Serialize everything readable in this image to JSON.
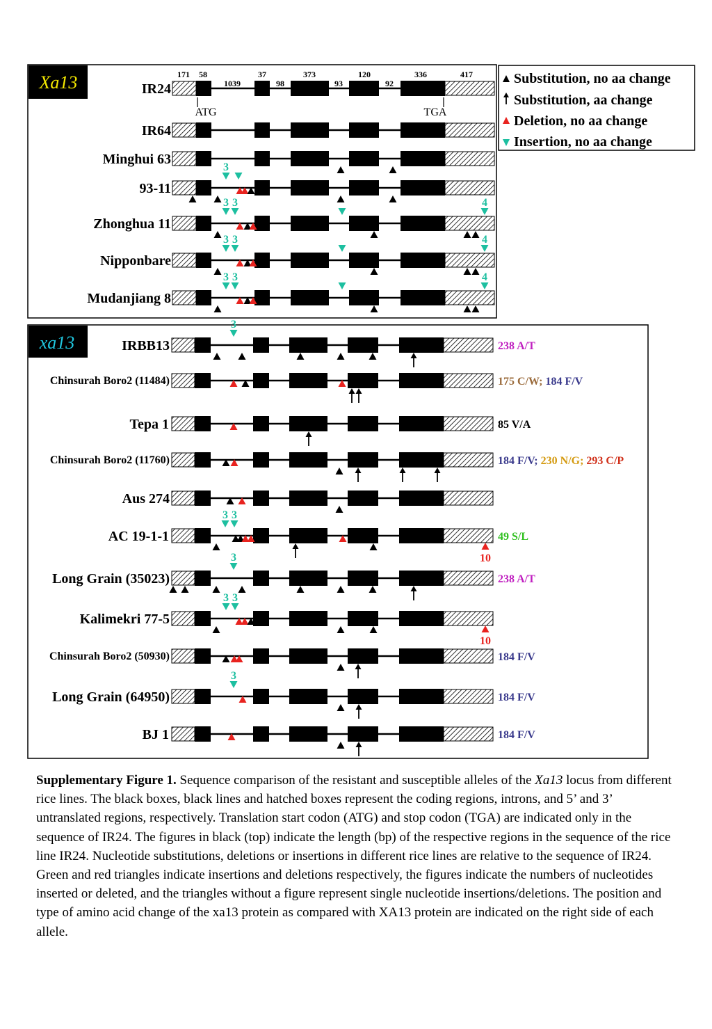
{
  "colors": {
    "exon": "#000000",
    "substitution": "#000000",
    "deletion": "#e8231f",
    "insertion": "#1dbfa0",
    "title_xa13_resistant_text": "#f5e900",
    "title_xa13_susceptible_text": "#20c8e0",
    "title_bg": "#000000"
  },
  "legend": {
    "items": [
      {
        "symbol": "triangle-up",
        "color": "#000000",
        "label": "Substitution, no aa change"
      },
      {
        "symbol": "arrow-up",
        "color": "#000000",
        "label": "Substitution, aa change"
      },
      {
        "symbol": "triangle-up",
        "color": "#e8231f",
        "label": "Deletion, no aa change"
      },
      {
        "symbol": "triangle-down",
        "color": "#1dbfa0",
        "label": "Insertion, no aa change"
      }
    ]
  },
  "gene_structure": {
    "lengths": [
      "171",
      "58",
      "1039",
      "37",
      "98",
      "373",
      "93",
      "120",
      "92",
      "336",
      "417"
    ],
    "start_codon": "ATG",
    "stop_codon": "TGA"
  },
  "panel_top": {
    "title": "Xa13",
    "lines": [
      {
        "name": "IR24"
      },
      {
        "name": "IR64"
      },
      {
        "name": "Minghui 63"
      },
      {
        "name": "93-11"
      },
      {
        "name": "Zhonghua 11"
      },
      {
        "name": "Nipponbare"
      },
      {
        "name": "Mudanjiang 8"
      }
    ]
  },
  "panel_bottom": {
    "title": "xa13",
    "lines": [
      {
        "name": "IRBB13",
        "changes": [
          {
            "text": "238 A/T",
            "color": "#c020c0"
          }
        ]
      },
      {
        "name": "Chinsurah Boro2 (11484)",
        "changes": [
          {
            "text": "175 C/W;",
            "color": "#9a6a3a"
          },
          {
            "text": "184 F/V",
            "color": "#3a3a8c"
          }
        ]
      },
      {
        "name": "Tepa 1",
        "changes": [
          {
            "text": "85 V/A",
            "color": "#000000"
          }
        ]
      },
      {
        "name": "Chinsurah Boro2 (11760)",
        "changes": [
          {
            "text": "184 F/V;",
            "color": "#3a3a8c"
          },
          {
            "text": "230 N/G;",
            "color": "#d49a10"
          },
          {
            "text": "293 C/P",
            "color": "#d0301a"
          }
        ]
      },
      {
        "name": "Aus 274",
        "changes": []
      },
      {
        "name": "AC 19-1-1",
        "changes": [
          {
            "text": "49 S/L",
            "color": "#30c020"
          }
        ]
      },
      {
        "name": "Long Grain (35023)",
        "changes": [
          {
            "text": "238 A/T",
            "color": "#c020c0"
          }
        ]
      },
      {
        "name": "Kalimekri 77-5",
        "changes": []
      },
      {
        "name": "Chinsurah Boro2 (50930)",
        "changes": [
          {
            "text": "184 F/V",
            "color": "#3a3a8c"
          }
        ]
      },
      {
        "name": "Long Grain (64950)",
        "changes": [
          {
            "text": "184 F/V",
            "color": "#3a3a8c"
          }
        ]
      },
      {
        "name": "BJ 1",
        "changes": [
          {
            "text": "184 F/V",
            "color": "#3a3a8c"
          }
        ]
      }
    ]
  },
  "caption": {
    "label": "Supplementary Figure 1.",
    "text_1": " Sequence comparison of the resistant and susceptible alleles of the ",
    "gene_italic": "Xa13",
    "text_2": " locus from different rice lines. The black boxes, black lines and hatched boxes represent the coding regions, introns, and 5’ and 3’ untranslated regions, respectively. Translation start codon (ATG) and stop codon (TGA) are indicated only in the sequence of IR24. The figures in black (top) indicate the length (bp) of the respective regions in the sequence of the rice line IR24. Nucleotide substitutions, deletions or insertions in different rice lines are relative to the sequence of IR24. Green and red triangles indicate insertions and deletions respectively, the figures indicate the numbers of nucleotides inserted or deleted, and the triangles without a figure represent single nucleotide insertions/deletions. The position and type of amino acid change of the xa13 protein as compared with XA13 protein are indicated on the right side of each allele."
  }
}
